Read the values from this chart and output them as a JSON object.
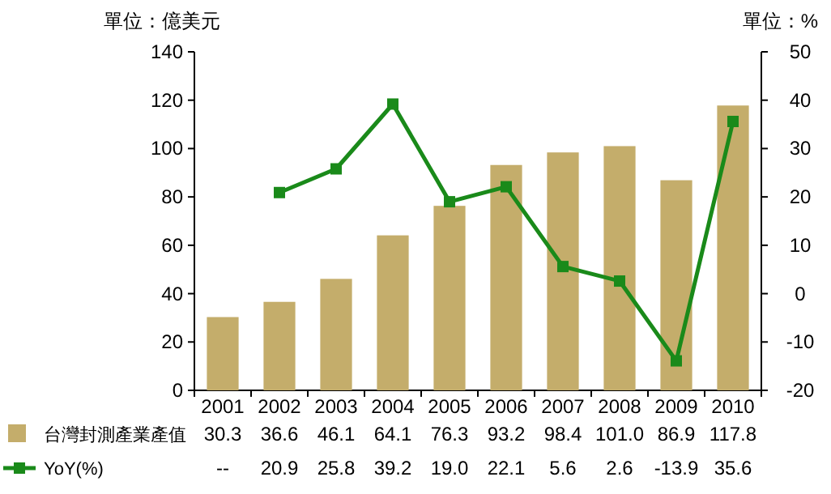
{
  "chart_data": {
    "type": "bar",
    "ylabel": "單位：億美元",
    "y2label": "單位：%",
    "categories": [
      "2001",
      "2002",
      "2003",
      "2004",
      "2005",
      "2006",
      "2007",
      "2008",
      "2009",
      "2010"
    ],
    "series": [
      {
        "name": "台灣封測產業產值",
        "color": "#c4ad6b",
        "values": [
          30.3,
          36.6,
          46.1,
          64.1,
          76.3,
          93.2,
          98.4,
          101.0,
          86.9,
          117.8
        ],
        "value_labels": [
          "30.3",
          "36.6",
          "46.1",
          "64.1",
          "76.3",
          "93.2",
          "98.4",
          "101.0",
          "86.9",
          "117.8"
        ]
      },
      {
        "name": "YoY(%)",
        "type": "line",
        "axis": "y2",
        "color": "#1a8a1a",
        "values": [
          null,
          20.9,
          25.8,
          39.2,
          19.0,
          22.1,
          5.6,
          2.6,
          -13.9,
          35.6
        ],
        "value_labels": [
          "--",
          "20.9",
          "25.8",
          "39.2",
          "19.0",
          "22.1",
          "5.6",
          "2.6",
          "-13.9",
          "35.6"
        ]
      }
    ],
    "marker": "square",
    "line_style": "solid",
    "legend": "bottom",
    "ylim": [
      0,
      140
    ],
    "yticks": [
      0,
      20,
      40,
      60,
      80,
      100,
      120,
      140
    ],
    "y2lim": [
      -20,
      50
    ],
    "y2ticks": [
      -20,
      -10,
      0,
      10,
      20,
      30,
      40,
      50
    ]
  }
}
